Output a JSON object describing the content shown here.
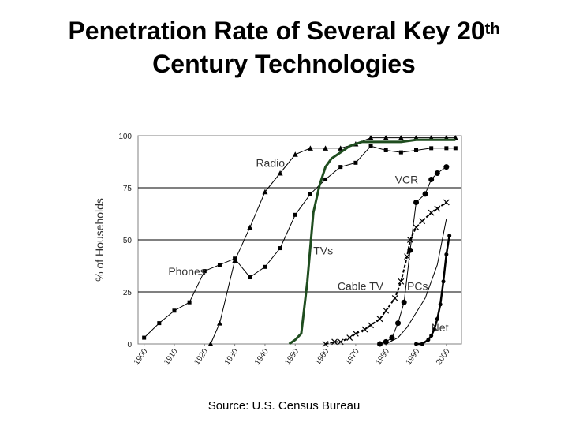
{
  "slide": {
    "title_line1": "Penetration Rate of Several Key 20",
    "title_sup": "th",
    "title_line2": "Century Technologies",
    "source": "Source:  U.S. Census Bureau"
  },
  "chart_data": {
    "type": "line",
    "title": "Penetration Rate of Several Key 20th Century Technologies",
    "xlabel": "",
    "ylabel": "% of Households",
    "xlim": [
      1898,
      2005
    ],
    "ylim": [
      0,
      100
    ],
    "grid": "horizontal",
    "yticks": [
      "0",
      "25",
      "50",
      "75",
      "100"
    ],
    "xticks": [
      "1900",
      "1910",
      "1920",
      "1930",
      "1940",
      "1950",
      "1960",
      "1970",
      "1980",
      "1990",
      "2000"
    ],
    "series": [
      {
        "name": "Phones",
        "color": "#000000",
        "marker": "square",
        "x": [
          1900,
          1905,
          1910,
          1915,
          1920,
          1925,
          1930,
          1935,
          1940,
          1945,
          1950,
          1955,
          1960,
          1965,
          1970,
          1975,
          1980,
          1985,
          1990,
          1995,
          2000,
          2003
        ],
        "y": [
          3,
          10,
          16,
          20,
          35,
          38,
          41,
          32,
          37,
          46,
          62,
          72,
          79,
          85,
          87,
          95,
          93,
          92,
          93,
          94,
          94,
          94
        ]
      },
      {
        "name": "Radio",
        "color": "#000000",
        "marker": "triangle",
        "x": [
          1922,
          1925,
          1930,
          1935,
          1940,
          1945,
          1950,
          1955,
          1960,
          1965,
          1970,
          1975,
          1980,
          1985,
          1990,
          1995,
          2000,
          2003
        ],
        "y": [
          0,
          10,
          40,
          56,
          73,
          82,
          91,
          94,
          94,
          94,
          96,
          99,
          99,
          99,
          99,
          99,
          99,
          99
        ]
      },
      {
        "name": "TVs",
        "color": "#1f4d1f",
        "marker": "none",
        "x": [
          1948,
          1950,
          1952,
          1954,
          1956,
          1958,
          1960,
          1962,
          1964,
          1966,
          1968,
          1970,
          1972,
          1975,
          1980,
          1985,
          1990,
          1995,
          2000,
          2003
        ],
        "y": [
          0,
          2,
          5,
          30,
          63,
          76,
          85,
          89,
          91,
          93,
          95,
          96,
          97,
          97,
          97,
          97,
          98,
          98,
          98,
          98
        ]
      },
      {
        "name": "Cable TV",
        "color": "#000000",
        "marker": "x",
        "x": [
          1960,
          1963,
          1965,
          1968,
          1970,
          1973,
          1975,
          1978,
          1980,
          1983,
          1985,
          1987,
          1988,
          1990,
          1992,
          1995,
          1997,
          2000
        ],
        "y": [
          0,
          1,
          1,
          3,
          5,
          7,
          9,
          12,
          16,
          22,
          30,
          42,
          50,
          56,
          59,
          63,
          65,
          68
        ]
      },
      {
        "name": "VCR",
        "color": "#000000",
        "marker": "circle",
        "x": [
          1978,
          1980,
          1982,
          1984,
          1986,
          1988,
          1990,
          1993,
          1995,
          1997,
          2000
        ],
        "y": [
          0,
          1,
          3,
          10,
          20,
          45,
          68,
          72,
          79,
          82,
          85
        ]
      },
      {
        "name": "PCs",
        "color": "#000000",
        "marker": "none",
        "x": [
          1980,
          1984,
          1987,
          1990,
          1993,
          1995,
          1997,
          2000
        ],
        "y": [
          0,
          3,
          8,
          15,
          22,
          30,
          38,
          60
        ]
      },
      {
        "name": "Net",
        "color": "#000000",
        "marker": "circle",
        "x": [
          1990,
          1992,
          1994,
          1995,
          1996,
          1997,
          1998,
          1999,
          2000,
          2001
        ],
        "y": [
          0,
          0,
          2,
          4,
          7,
          12,
          19,
          30,
          43,
          52
        ]
      }
    ],
    "annotations": [
      {
        "text": "Radio",
        "x": 1937,
        "y": 85
      },
      {
        "text": "VCR",
        "x": 1983,
        "y": 77
      },
      {
        "text": "TVs",
        "x": 1956,
        "y": 43
      },
      {
        "text": "Phones",
        "x": 1908,
        "y": 33
      },
      {
        "text": "Cable TV",
        "x": 1964,
        "y": 26
      },
      {
        "text": "PCs",
        "x": 1987,
        "y": 26
      },
      {
        "text": "Net",
        "x": 1995,
        "y": 6
      }
    ]
  }
}
